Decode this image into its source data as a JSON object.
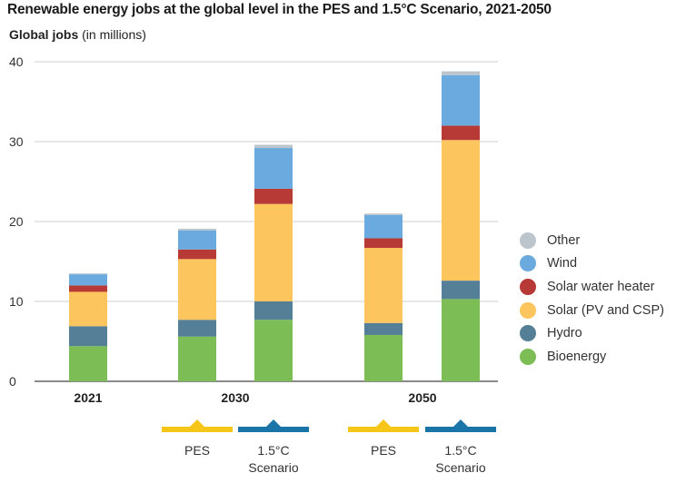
{
  "title": "Renewable energy jobs at the global level in the PES and 1.5°C Scenario, 2021-2050",
  "y_axis": {
    "label_bold": "Global jobs",
    "label_unit": " (in millions)"
  },
  "chart_data": {
    "type": "bar",
    "stacked": true,
    "title": "Renewable energy jobs at the global level in the PES and 1.5°C Scenario, 2021-2050",
    "ylabel": "Global jobs (in millions)",
    "ylim": [
      0,
      40
    ],
    "yticks": [
      0,
      10,
      20,
      30,
      40
    ],
    "grid": true,
    "legend_position": "right",
    "groups": [
      {
        "label": "2021",
        "bars": [
          {
            "scenario": ""
          }
        ]
      },
      {
        "label": "2030",
        "bars": [
          {
            "scenario": "PES"
          },
          {
            "scenario": "1.5°C Scenario"
          }
        ]
      },
      {
        "label": "2050",
        "bars": [
          {
            "scenario": "PES"
          },
          {
            "scenario": "1.5°C Scenario"
          }
        ]
      }
    ],
    "categories": [
      "2021",
      "2030 PES",
      "2030 1.5°C Scenario",
      "2050 PES",
      "2050 1.5°C Scenario"
    ],
    "series": [
      {
        "name": "Bioenergy",
        "color": "#7dbd55",
        "values": [
          4.4,
          5.6,
          7.7,
          5.8,
          10.3
        ]
      },
      {
        "name": "Hydro",
        "color": "#557f96",
        "values": [
          2.5,
          2.1,
          2.3,
          1.5,
          2.3
        ]
      },
      {
        "name": "Solar (PV and CSP)",
        "color": "#fcc55e",
        "values": [
          4.3,
          7.6,
          12.2,
          9.4,
          17.6
        ]
      },
      {
        "name": "Solar water heater",
        "color": "#b83a36",
        "values": [
          0.8,
          1.2,
          1.9,
          1.2,
          1.8
        ]
      },
      {
        "name": "Wind",
        "color": "#6aaade",
        "values": [
          1.4,
          2.4,
          5.1,
          2.9,
          6.3
        ]
      },
      {
        "name": "Other",
        "color": "#bcc4cc",
        "values": [
          0.1,
          0.2,
          0.4,
          0.2,
          0.5
        ]
      }
    ]
  },
  "scenario_labels": {
    "pes": "PES",
    "s15_line1": "1.5°C",
    "s15_line2": "Scenario",
    "pes_color": "#f5c518",
    "s15_color": "#1b74a8"
  },
  "legend": [
    {
      "name": "Other",
      "color": "#bcc4cc"
    },
    {
      "name": "Wind",
      "color": "#6aaade"
    },
    {
      "name": "Solar water heater",
      "color": "#b83a36"
    },
    {
      "name": "Solar (PV and CSP)",
      "color": "#fcc55e"
    },
    {
      "name": "Hydro",
      "color": "#557f96"
    },
    {
      "name": "Bioenergy",
      "color": "#7dbd55"
    }
  ]
}
